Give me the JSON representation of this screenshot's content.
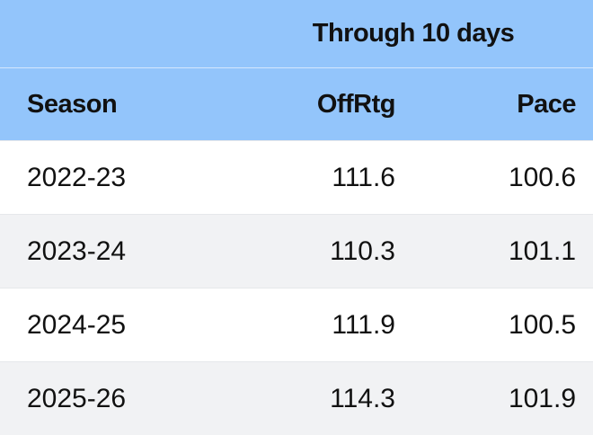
{
  "chart_data": {
    "type": "table",
    "group_header": "Through 10 days",
    "columns": [
      "Season",
      "OffRtg",
      "Pace"
    ],
    "rows": [
      [
        "2022-23",
        "111.6",
        "100.6"
      ],
      [
        "2023-24",
        "110.3",
        "101.1"
      ],
      [
        "2024-25",
        "111.9",
        "100.5"
      ],
      [
        "2025-26",
        "114.3",
        "101.9"
      ]
    ],
    "colors": {
      "header_bg": "#93c5fb",
      "row_alt_bg": "#f1f2f4",
      "row_bg": "#ffffff"
    }
  }
}
